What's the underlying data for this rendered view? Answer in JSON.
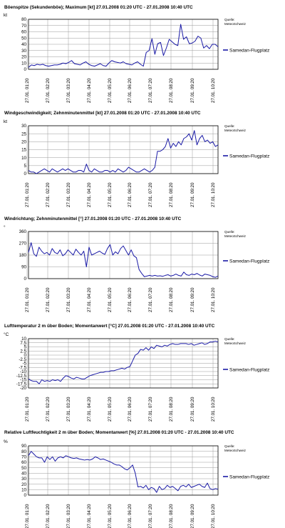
{
  "source_label": "Quelle: MeteoSchweiz",
  "source_line1": "Quelle:",
  "source_line2": "MeteoSchweiz",
  "legend_label": "Samedan-Flugplatz",
  "series_color": "#1a1aa6",
  "x_tick_labels": [
    "27.01. 01:20",
    "27.01. 02:20",
    "27.01. 03:20",
    "27.01. 04:20",
    "27.01. 05:20",
    "27.01. 06:20",
    "27.01. 07:20",
    "27.01. 08:20",
    "27.01. 09:20",
    "27.01. 10:20"
  ],
  "chart_data": [
    {
      "type": "line",
      "title": "Böenspitze (Sekundenböe); Maximum [kt] 27.01.2008 01:20 UTC - 27.01.2008 10:40 UTC",
      "ylabel": "kt",
      "ylim": [
        0,
        80
      ],
      "yticks": [
        0,
        10,
        20,
        30,
        40,
        50,
        60,
        70,
        80
      ],
      "grid": true,
      "legend_position": "right",
      "series": [
        {
          "name": "Samedan-Flugplatz",
          "values": [
            3,
            7,
            6,
            8,
            7,
            8,
            6,
            5,
            6,
            7,
            7,
            8,
            10,
            9,
            11,
            14,
            9,
            8,
            7,
            10,
            12,
            8,
            6,
            5,
            7,
            9,
            6,
            5,
            10,
            14,
            12,
            11,
            10,
            12,
            9,
            8,
            7,
            10,
            12,
            8,
            5,
            27,
            30,
            49,
            24,
            41,
            43,
            22,
            34,
            48,
            44,
            40,
            38,
            72,
            48,
            52,
            41,
            42,
            45,
            53,
            50,
            34,
            38,
            33,
            40,
            40,
            36
          ]
        }
      ]
    },
    {
      "type": "line",
      "title": "Windgeschwindigkeit; Zehnminutenmittel [kt] 27.01.2008 01:20 UTC - 27.01.2008 10:40 UTC",
      "ylabel": "kt",
      "ylim": [
        0,
        30
      ],
      "yticks": [
        0,
        5,
        10,
        15,
        20,
        25,
        30
      ],
      "grid": true,
      "legend_position": "right",
      "series": [
        {
          "name": "Samedan-Flugplatz",
          "values": [
            2,
            1,
            1,
            0,
            1,
            2,
            3,
            2,
            1,
            3,
            2,
            1,
            2,
            3,
            2,
            3,
            2,
            1,
            1,
            2,
            2,
            1,
            6,
            2,
            1,
            3,
            2,
            1,
            1,
            2,
            2,
            1,
            2,
            1,
            3,
            2,
            1,
            2,
            4,
            3,
            2,
            1,
            1,
            2,
            3,
            2,
            1,
            2,
            4,
            14,
            14,
            15,
            17,
            22,
            16,
            19,
            17,
            20,
            18,
            22,
            23,
            25,
            21,
            27,
            18,
            22,
            24,
            20,
            21,
            19,
            20,
            17,
            18
          ]
        }
      ]
    },
    {
      "type": "line",
      "title": "Windrichtung; Zehnminutenmittel [°] 27.01.2008 01:20 UTC - 27.01.2008 10:40 UTC",
      "ylabel": "°",
      "ylim": [
        0,
        360
      ],
      "yticks": [
        0,
        90,
        180,
        270,
        360
      ],
      "grid": true,
      "legend_position": "right",
      "series": [
        {
          "name": "Samedan-Flugplatz",
          "values": [
            200,
            275,
            190,
            170,
            240,
            210,
            190,
            200,
            180,
            230,
            200,
            190,
            220,
            175,
            190,
            220,
            200,
            180,
            225,
            200,
            180,
            210,
            90,
            240,
            180,
            190,
            200,
            210,
            195,
            185,
            230,
            260,
            180,
            205,
            190,
            230,
            250,
            215,
            180,
            220,
            175,
            160,
            70,
            40,
            15,
            20,
            25,
            20,
            25,
            20,
            22,
            18,
            25,
            30,
            20,
            25,
            35,
            25,
            20,
            50,
            30,
            25,
            35,
            30,
            40,
            28,
            20,
            35,
            30,
            25,
            15,
            10,
            20
          ]
        }
      ]
    },
    {
      "type": "line",
      "title": "Lufttemperatur 2 m über Boden; Momentanwert [°C] 27.01.2008 01:20 UTC - 27.01.2008 10:40 UTC",
      "ylabel": "°C",
      "ylim": [
        -20,
        10
      ],
      "yticks": [
        -20,
        -17.5,
        -15,
        -12.5,
        -10,
        -7.5,
        -5,
        -2.5,
        0,
        2.5,
        5,
        7.5,
        10
      ],
      "grid": true,
      "legend_position": "right",
      "series": [
        {
          "name": "Samedan-Flugplatz",
          "values": [
            -14.5,
            -15.5,
            -16,
            -16,
            -17.5,
            -15,
            -16,
            -15.5,
            -16,
            -15,
            -15.5,
            -15,
            -16,
            -14,
            -12.5,
            -13,
            -14,
            -14.5,
            -13.5,
            -14,
            -14.5,
            -14.5,
            -13.5,
            -12.5,
            -12,
            -11.5,
            -11,
            -10.5,
            -10.5,
            -10,
            -10,
            -9.5,
            -9.5,
            -9,
            -8.5,
            -8,
            -8.5,
            -7.5,
            -7,
            -3.5,
            0,
            1,
            3.5,
            3,
            4.5,
            3,
            5,
            4,
            6,
            5.5,
            5,
            6,
            5.5,
            6.5,
            7,
            6.5,
            6.5,
            7,
            7,
            7,
            6.5,
            7,
            6,
            6.5,
            7,
            7.5,
            6.5,
            7,
            8,
            8,
            8.5,
            8
          ]
        }
      ]
    },
    {
      "type": "line",
      "title": "Relative Luftfeuchtigkeit 2 m über Boden; Momentanwert [%] 27.01.2008 01:20 UTC - 27.01.2008 10:40 UTC",
      "ylabel": "%",
      "ylim": [
        0,
        90
      ],
      "yticks": [
        0,
        10,
        20,
        30,
        40,
        50,
        60,
        70,
        80,
        90
      ],
      "grid": true,
      "legend_position": "right",
      "series": [
        {
          "name": "Samedan-Flugplatz",
          "values": [
            72,
            80,
            75,
            70,
            68,
            68,
            60,
            70,
            65,
            70,
            62,
            68,
            70,
            68,
            72,
            70,
            68,
            67,
            68,
            66,
            65,
            64,
            65,
            64,
            66,
            70,
            68,
            65,
            66,
            64,
            62,
            60,
            57,
            55,
            55,
            52,
            48,
            46,
            50,
            55,
            40,
            15,
            16,
            13,
            18,
            10,
            14,
            12,
            5,
            16,
            10,
            12,
            18,
            14,
            16,
            12,
            8,
            16,
            18,
            15,
            20,
            14,
            16,
            18,
            20,
            16,
            14,
            22,
            12,
            10,
            12,
            11
          ]
        }
      ]
    }
  ]
}
